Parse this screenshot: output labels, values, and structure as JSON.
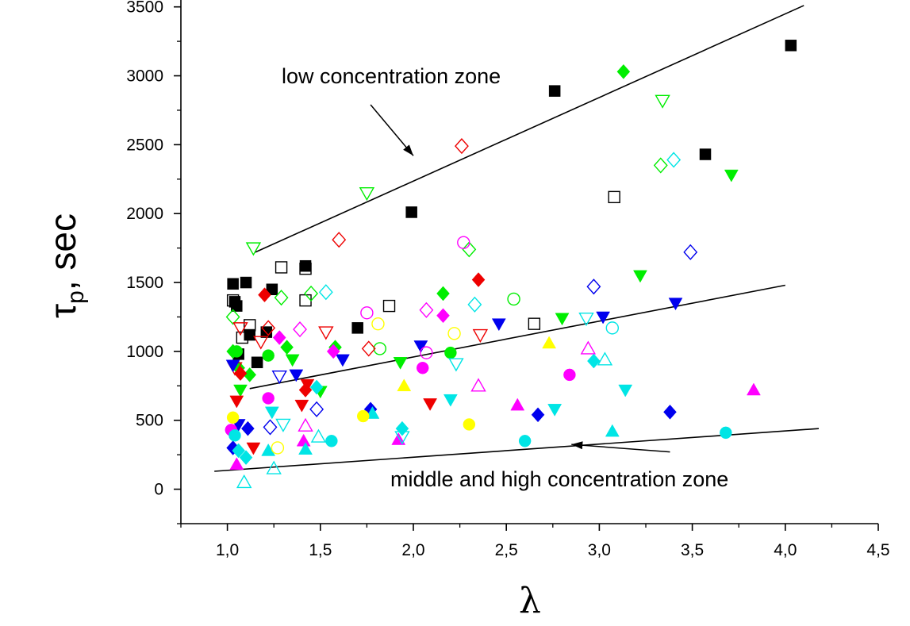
{
  "chart_data": {
    "type": "scatter",
    "title": "",
    "xlabel": "λ",
    "ylabel": {
      "main": "τ",
      "sub": "p",
      "rest": ", sec"
    },
    "xlim": [
      0.75,
      4.5
    ],
    "ylim": [
      -250,
      3550
    ],
    "x_ticks": [
      "1,0",
      "1,5",
      "2,0",
      "2,5",
      "3,0",
      "3,5",
      "4,0",
      "4,5"
    ],
    "x_tick_values": [
      1.0,
      1.5,
      2.0,
      2.5,
      3.0,
      3.5,
      4.0,
      4.5
    ],
    "y_ticks": [
      "0",
      "500",
      "1000",
      "1500",
      "2000",
      "2500",
      "3000",
      "3500"
    ],
    "y_tick_values": [
      0,
      500,
      1000,
      1500,
      2000,
      2500,
      3000,
      3500
    ],
    "grid": false,
    "annotations": [
      {
        "text": "low concentration zone",
        "arrow_from": [
          1.77,
          2790
        ],
        "arrow_to": [
          2.0,
          2420
        ]
      },
      {
        "text": "middle and high concentration zone",
        "arrow_from": [
          3.38,
          270
        ],
        "arrow_to": [
          2.85,
          325
        ]
      }
    ],
    "trend_lines": [
      {
        "name": "low concentration boundary",
        "x": [
          1.15,
          4.1
        ],
        "y": [
          1720,
          3510
        ]
      },
      {
        "name": "middle trend",
        "x": [
          1.12,
          4.0
        ],
        "y": [
          730,
          1480
        ]
      },
      {
        "name": "middle and high concentration boundary",
        "x": [
          0.93,
          4.18
        ],
        "y": [
          130,
          440
        ]
      }
    ],
    "colors": {
      "black": "#000000",
      "green": "#00ee00",
      "red": "#ee0000",
      "blue": "#0000ee",
      "magenta": "#ff00ff",
      "cyan": "#00e5e5",
      "yellow": "#ffff00"
    },
    "series": [
      {
        "name": "black filled squares",
        "marker": "square",
        "color": "black",
        "filled": true,
        "x": [
          1.03,
          1.04,
          1.05,
          1.06,
          1.1,
          1.12,
          1.16,
          1.21,
          1.24,
          1.42,
          1.7,
          1.99,
          2.76,
          3.57,
          4.03
        ],
        "y": [
          1490,
          1360,
          1330,
          980,
          1500,
          1120,
          920,
          1140,
          1450,
          1620,
          1170,
          2010,
          2890,
          2430,
          3220
        ]
      },
      {
        "name": "black open squares",
        "marker": "square",
        "color": "black",
        "filled": false,
        "x": [
          1.03,
          1.08,
          1.12,
          1.29,
          1.42,
          1.42,
          1.87,
          2.65,
          3.08
        ],
        "y": [
          1370,
          1100,
          1190,
          1610,
          1600,
          1370,
          1330,
          1200,
          2120
        ]
      },
      {
        "name": "green filled diamonds",
        "marker": "diamond",
        "color": "green",
        "filled": true,
        "x": [
          1.03,
          1.06,
          1.12,
          1.32,
          1.58,
          2.16,
          3.13
        ],
        "y": [
          1000,
          880,
          830,
          1030,
          1030,
          1420,
          3030
        ]
      },
      {
        "name": "green open diamonds",
        "marker": "diamond",
        "color": "green",
        "filled": false,
        "x": [
          1.03,
          1.29,
          1.45,
          2.3,
          3.33
        ],
        "y": [
          1250,
          1390,
          1420,
          1740,
          2350
        ]
      },
      {
        "name": "green filled circles",
        "marker": "circle",
        "color": "green",
        "filled": true,
        "x": [
          1.05,
          1.22,
          2.2
        ],
        "y": [
          1000,
          970,
          990
        ]
      },
      {
        "name": "green open circles",
        "marker": "circle",
        "color": "green",
        "filled": false,
        "x": [
          1.82,
          2.54
        ],
        "y": [
          1020,
          1380
        ]
      },
      {
        "name": "green filled down-triangles",
        "marker": "triangle-down",
        "color": "green",
        "filled": true,
        "x": [
          1.07,
          1.35,
          1.5,
          1.93,
          2.8,
          3.22,
          3.71
        ],
        "y": [
          720,
          940,
          710,
          920,
          1240,
          1550,
          2280
        ]
      },
      {
        "name": "green open down-triangles",
        "marker": "triangle-down",
        "color": "green",
        "filled": false,
        "x": [
          1.14,
          1.75,
          3.34
        ],
        "y": [
          1750,
          2150,
          2820
        ]
      },
      {
        "name": "red filled diamonds",
        "marker": "diamond",
        "color": "red",
        "filled": true,
        "x": [
          1.07,
          1.2,
          1.42,
          2.35
        ],
        "y": [
          840,
          1410,
          720,
          1520
        ]
      },
      {
        "name": "red open diamonds",
        "marker": "diamond",
        "color": "red",
        "filled": false,
        "x": [
          1.6,
          1.76,
          2.26,
          1.22
        ],
        "y": [
          1810,
          1020,
          2490,
          1170
        ]
      },
      {
        "name": "red filled down-triangles",
        "marker": "triangle-down",
        "color": "red",
        "filled": true,
        "x": [
          1.05,
          1.14,
          1.43,
          1.4,
          2.09
        ],
        "y": [
          640,
          300,
          760,
          610,
          620
        ]
      },
      {
        "name": "red open down-triangles",
        "marker": "triangle-down",
        "color": "red",
        "filled": false,
        "x": [
          1.04,
          1.07,
          1.18,
          1.53,
          2.36
        ],
        "y": [
          880,
          1170,
          1070,
          1140,
          1120
        ]
      },
      {
        "name": "blue filled down-triangles",
        "marker": "triangle-down",
        "color": "blue",
        "filled": true,
        "x": [
          1.03,
          1.06,
          1.37,
          1.62,
          2.04,
          2.46,
          3.02,
          3.41
        ],
        "y": [
          900,
          470,
          830,
          940,
          1040,
          1200,
          1250,
          1350
        ]
      },
      {
        "name": "blue open down-triangles",
        "marker": "triangle-down",
        "color": "blue",
        "filled": false,
        "x": [
          1.28
        ],
        "y": [
          820
        ]
      },
      {
        "name": "blue filled diamonds",
        "marker": "diamond",
        "color": "blue",
        "filled": true,
        "x": [
          1.03,
          1.11,
          1.77,
          2.67,
          3.38
        ],
        "y": [
          300,
          440,
          580,
          540,
          560
        ]
      },
      {
        "name": "blue open diamonds",
        "marker": "diamond",
        "color": "blue",
        "filled": false,
        "x": [
          1.23,
          1.48,
          2.97,
          3.49
        ],
        "y": [
          450,
          580,
          1470,
          1720
        ]
      },
      {
        "name": "magenta filled circles",
        "marker": "circle",
        "color": "magenta",
        "filled": true,
        "x": [
          1.02,
          1.22,
          2.05,
          2.84
        ],
        "y": [
          430,
          660,
          880,
          830
        ]
      },
      {
        "name": "magenta open circles",
        "marker": "circle",
        "color": "magenta",
        "filled": false,
        "x": [
          1.75,
          2.07,
          2.27
        ],
        "y": [
          1280,
          990,
          1790
        ]
      },
      {
        "name": "magenta filled diamonds",
        "marker": "diamond",
        "color": "magenta",
        "filled": true,
        "x": [
          1.28,
          1.57,
          2.16
        ],
        "y": [
          1100,
          1000,
          1260
        ]
      },
      {
        "name": "magenta open diamonds",
        "marker": "diamond",
        "color": "magenta",
        "filled": false,
        "x": [
          1.39,
          2.07
        ],
        "y": [
          1160,
          1300
        ]
      },
      {
        "name": "magenta filled triangles",
        "marker": "triangle-up",
        "color": "magenta",
        "filled": true,
        "x": [
          1.05,
          1.41,
          1.92,
          2.56,
          3.83
        ],
        "y": [
          180,
          350,
          360,
          610,
          720
        ]
      },
      {
        "name": "magenta open triangles",
        "marker": "triangle-up",
        "color": "magenta",
        "filled": false,
        "x": [
          1.42,
          2.35,
          2.94
        ],
        "y": [
          460,
          750,
          1020
        ]
      },
      {
        "name": "cyan filled circles",
        "marker": "circle",
        "color": "cyan",
        "filled": true,
        "x": [
          1.04,
          1.56,
          2.6,
          3.68
        ],
        "y": [
          390,
          350,
          350,
          410
        ]
      },
      {
        "name": "cyan open circles",
        "marker": "circle",
        "color": "cyan",
        "filled": false,
        "x": [
          3.07
        ],
        "y": [
          1170
        ]
      },
      {
        "name": "cyan filled diamonds",
        "marker": "diamond",
        "color": "cyan",
        "filled": true,
        "x": [
          1.06,
          1.1,
          1.48,
          1.94,
          2.97
        ],
        "y": [
          280,
          230,
          740,
          440,
          930
        ]
      },
      {
        "name": "cyan open diamonds",
        "marker": "diamond",
        "color": "cyan",
        "filled": false,
        "x": [
          1.53,
          2.33,
          3.4
        ],
        "y": [
          1430,
          1340,
          2390
        ]
      },
      {
        "name": "cyan filled down-triangles",
        "marker": "triangle-down",
        "color": "cyan",
        "filled": true,
        "x": [
          1.24,
          2.2,
          2.76,
          3.14
        ],
        "y": [
          560,
          650,
          580,
          720
        ]
      },
      {
        "name": "cyan open down-triangles",
        "marker": "triangle-down",
        "color": "cyan",
        "filled": false,
        "x": [
          1.3,
          1.94,
          2.23,
          2.93
        ],
        "y": [
          470,
          380,
          910,
          1240
        ]
      },
      {
        "name": "cyan filled triangles",
        "marker": "triangle-up",
        "color": "cyan",
        "filled": true,
        "x": [
          1.22,
          1.42,
          1.78,
          3.07
        ],
        "y": [
          280,
          290,
          550,
          420
        ]
      },
      {
        "name": "cyan open triangles",
        "marker": "triangle-up",
        "color": "cyan",
        "filled": false,
        "x": [
          1.09,
          1.25,
          1.49,
          3.03
        ],
        "y": [
          50,
          150,
          380,
          940
        ]
      },
      {
        "name": "yellow filled circles",
        "marker": "circle",
        "color": "yellow",
        "filled": true,
        "x": [
          1.03,
          1.73,
          2.3
        ],
        "y": [
          520,
          530,
          470
        ]
      },
      {
        "name": "yellow open circles",
        "marker": "circle",
        "color": "yellow",
        "filled": false,
        "x": [
          1.27,
          1.81,
          2.22
        ],
        "y": [
          300,
          1200,
          1130
        ]
      },
      {
        "name": "yellow filled triangles",
        "marker": "triangle-up",
        "color": "yellow",
        "filled": true,
        "x": [
          1.95,
          2.73
        ],
        "y": [
          750,
          1060
        ]
      }
    ]
  }
}
